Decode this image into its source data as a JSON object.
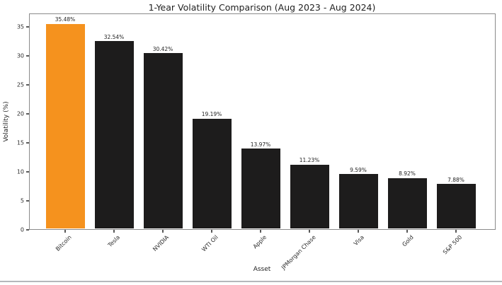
{
  "chart_data": {
    "type": "bar",
    "title": "1-Year Volatility Comparison (Aug 2023 - Aug 2024)",
    "xlabel": "Asset",
    "ylabel": "Volatility (%)",
    "categories": [
      "Bitcoin",
      "Tesla",
      "NVIDIA",
      "WTI Oil",
      "Apple",
      "JPMorgan Chase",
      "Visa",
      "Gold",
      "S&P 500"
    ],
    "values": [
      35.48,
      32.54,
      30.42,
      19.19,
      13.97,
      11.23,
      9.59,
      8.92,
      7.88
    ],
    "value_labels": [
      "35.48%",
      "32.54%",
      "30.42%",
      "19.19%",
      "13.97%",
      "11.23%",
      "9.59%",
      "8.92%",
      "7.88%"
    ],
    "bar_colors": [
      "#f5921e",
      "#1d1c1c",
      "#1d1c1c",
      "#1d1c1c",
      "#1d1c1c",
      "#1d1c1c",
      "#1d1c1c",
      "#1d1c1c",
      "#1d1c1c"
    ],
    "highlight": {
      "category": "Bitcoin",
      "color": "#f5921e"
    },
    "default_bar_color": "#1d1c1c",
    "yticks": [
      0,
      5,
      10,
      15,
      20,
      25,
      30,
      35
    ],
    "ylim": [
      0,
      37.3
    ],
    "grid": false,
    "legend": "none",
    "plot_background": "#ffffff",
    "spine_color": "#8a8a8a"
  },
  "window": {
    "bottom_divider_color": "#b5b8bb"
  }
}
